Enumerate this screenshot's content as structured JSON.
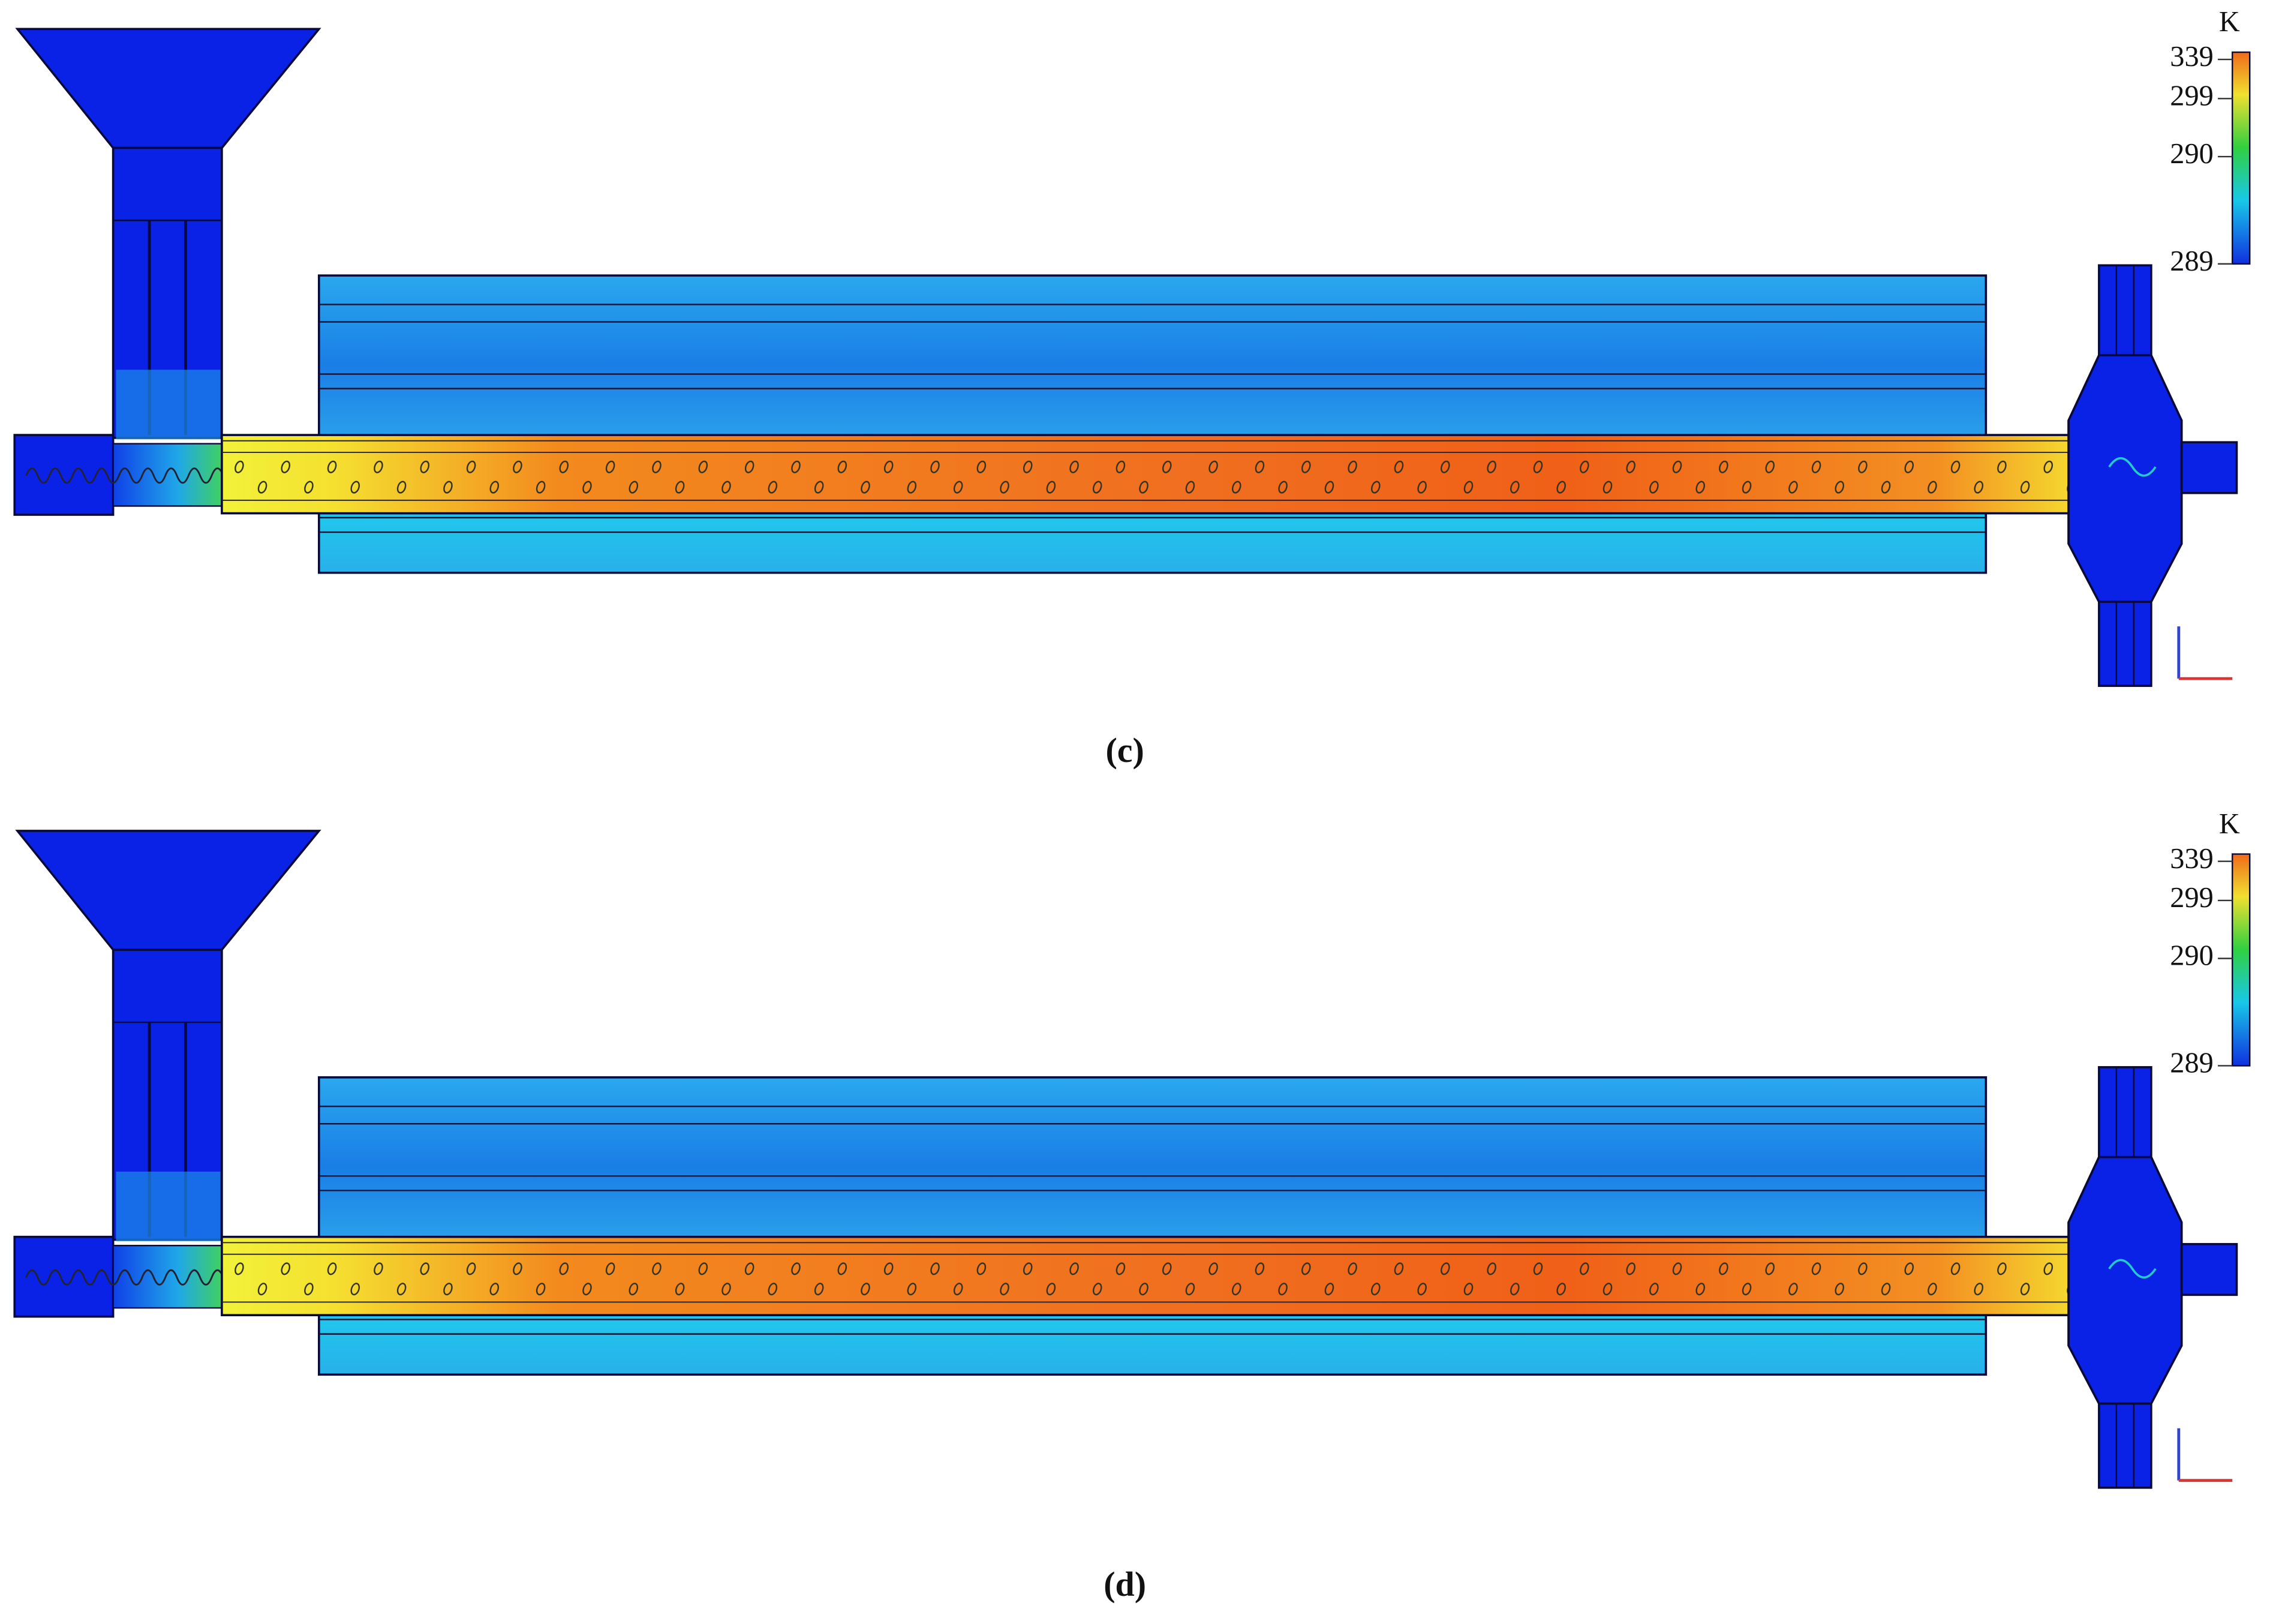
{
  "panels": [
    {
      "label": "(c)",
      "colorbar": {
        "unit": "K",
        "ticks": [
          "339",
          "299",
          "290",
          "289"
        ]
      }
    },
    {
      "label": "(d)",
      "colorbar": {
        "unit": "K",
        "ticks": [
          "339",
          "299",
          "290",
          "289"
        ]
      }
    }
  ]
}
